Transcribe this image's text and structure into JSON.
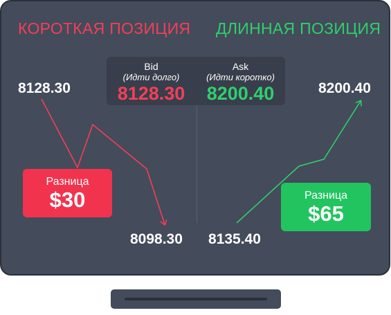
{
  "headings": {
    "short": "КОРОТКАЯ ПОЗИЦИЯ",
    "long": "ДЛИННАЯ ПОЗИЦИЯ"
  },
  "quote": {
    "bid": {
      "label": "Bid",
      "sub": "(Идти долго)",
      "value": "8128.30"
    },
    "ask": {
      "label": "Ask",
      "sub": "(Идти коротко)",
      "value": "8200.40"
    }
  },
  "short_position": {
    "start_price": "8128.30",
    "end_price": "8098.30",
    "diff_label": "Разница",
    "diff_value": "$30"
  },
  "long_position": {
    "start_price": "8135.40",
    "end_price": "8200.40",
    "diff_label": "Разница",
    "diff_value": "$65"
  },
  "colors": {
    "background": "#444b5a",
    "short": "#f0405a",
    "long": "#2fcf6e"
  }
}
